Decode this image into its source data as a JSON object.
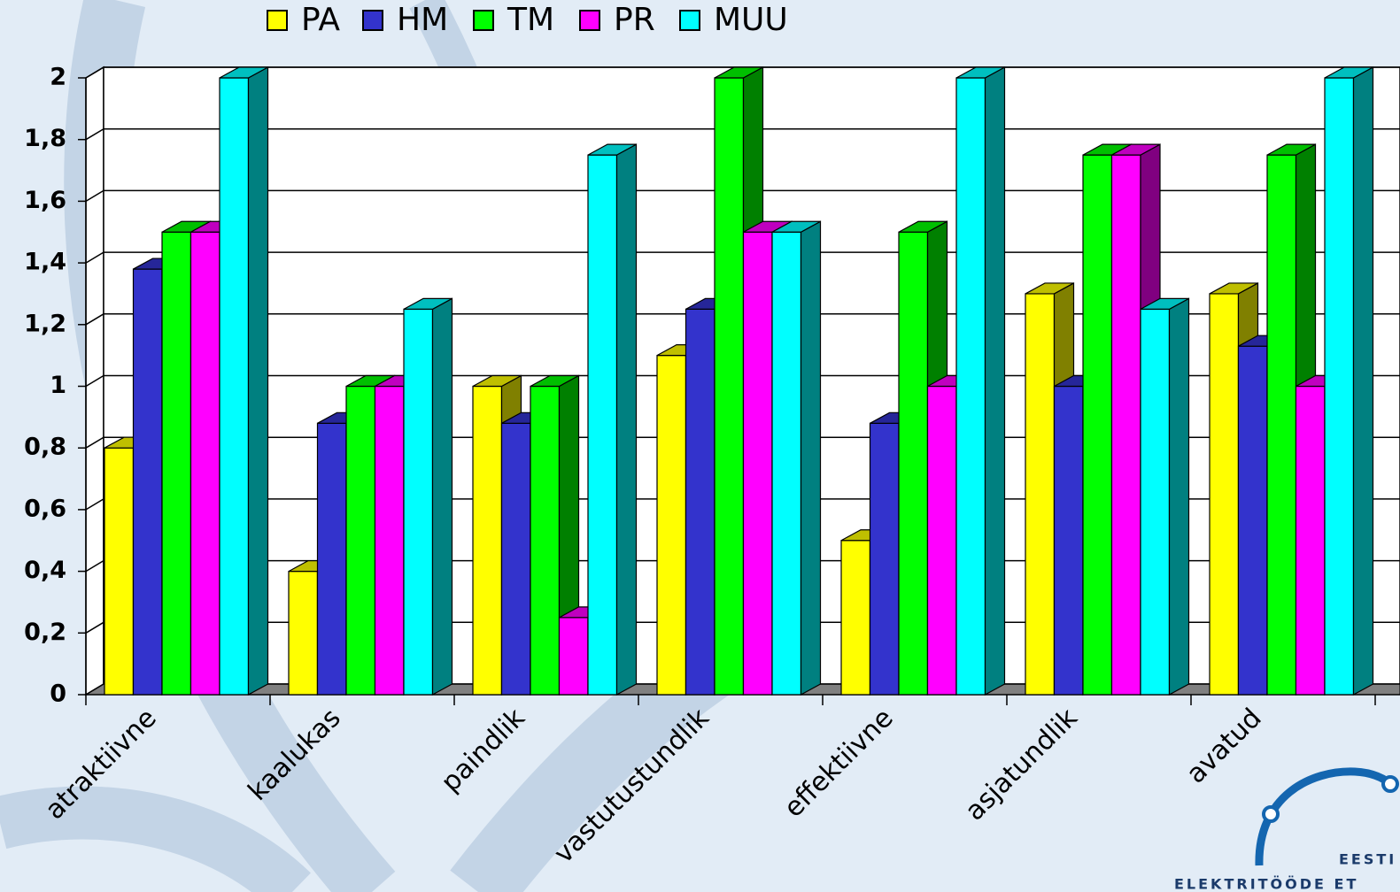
{
  "chart_data": {
    "type": "bar3d",
    "categories": [
      "atraktiivne",
      "kaalukas",
      "paindlik",
      "vastutustundlik",
      "effektiivne",
      "asjatundlik",
      "avatud"
    ],
    "series": [
      {
        "name": "PA",
        "color": "#ffff00",
        "values": [
          0.8,
          0.4,
          1.0,
          1.1,
          0.5,
          1.3,
          1.3
        ]
      },
      {
        "name": "HM",
        "color": "#3333cc",
        "values": [
          1.38,
          0.88,
          0.88,
          1.25,
          0.88,
          1.0,
          1.13
        ]
      },
      {
        "name": "TM",
        "color": "#00ff00",
        "values": [
          1.5,
          1.0,
          1.0,
          2.0,
          1.5,
          1.75,
          1.75
        ]
      },
      {
        "name": "PR",
        "color": "#ff00ff",
        "values": [
          1.5,
          1.0,
          0.25,
          1.5,
          1.0,
          1.75,
          1.0
        ]
      },
      {
        "name": "MUU",
        "color": "#00ffff",
        "values": [
          2.0,
          1.25,
          1.75,
          1.5,
          2.0,
          1.25,
          2.0
        ]
      }
    ],
    "ylim": [
      0,
      2
    ],
    "yticks": [
      0,
      {
        "value": 0.2,
        "label": "0,2"
      },
      {
        "value": 0.4,
        "label": "0,4"
      },
      {
        "value": 0.6,
        "label": "0,6"
      },
      {
        "value": 0.8,
        "label": "0,8"
      },
      1,
      {
        "value": 1.2,
        "label": "1,2"
      },
      {
        "value": 1.4,
        "label": "1,4"
      },
      {
        "value": 1.6,
        "label": "1,6"
      },
      {
        "value": 1.8,
        "label": "1,8"
      },
      2
    ],
    "grid": true,
    "legend": "top"
  },
  "logo": {
    "line1": "EESTI",
    "line2": "ELEKTRITÖÖDE ET"
  }
}
